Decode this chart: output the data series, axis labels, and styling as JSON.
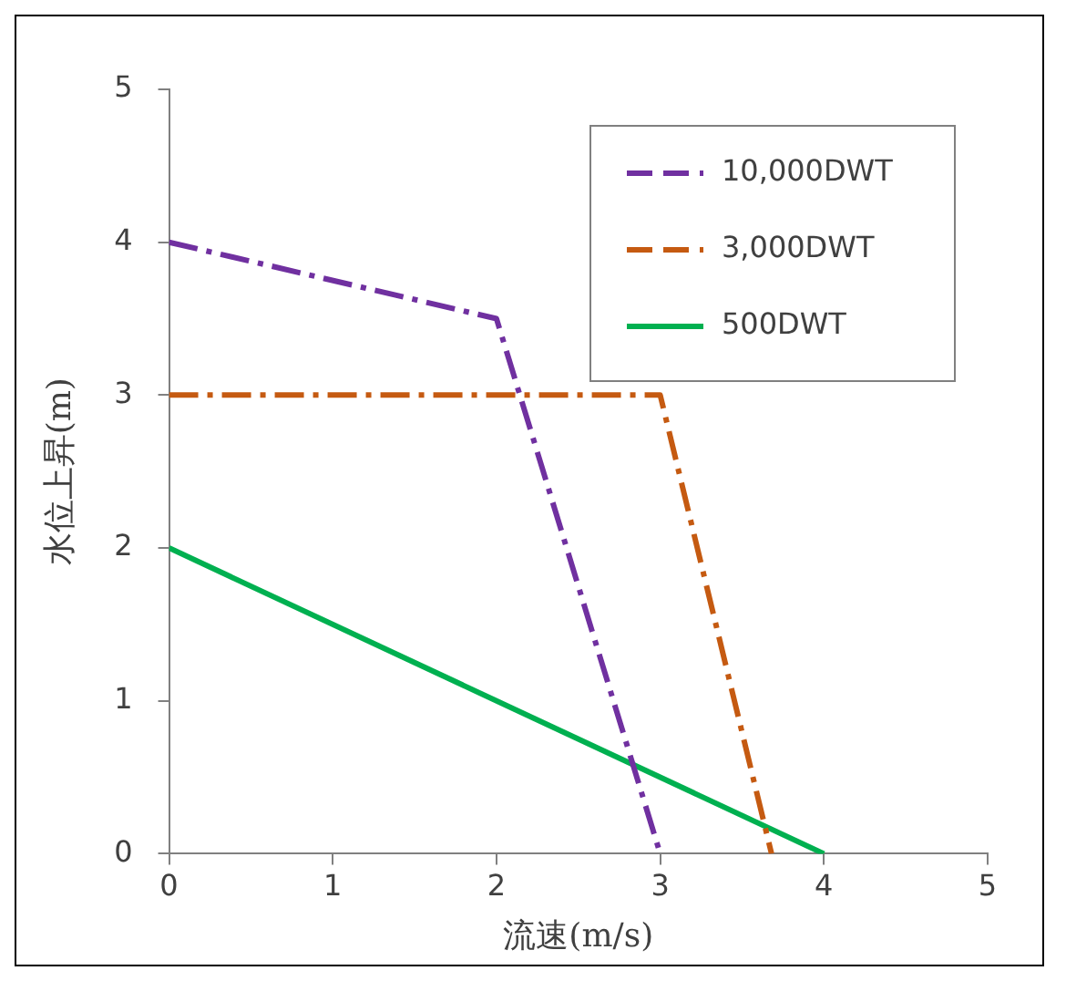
{
  "chart_data": {
    "type": "line",
    "xlabel": "流速(m/s)",
    "ylabel": "水位上昇(m)",
    "xlim": [
      0,
      5
    ],
    "ylim": [
      0,
      5
    ],
    "xticks": [
      0,
      1,
      2,
      3,
      4,
      5
    ],
    "yticks": [
      0,
      1,
      2,
      3,
      4,
      5
    ],
    "grid": false,
    "legend": "top right",
    "marker": "none",
    "series": [
      {
        "name": "10,000DWT",
        "color": "#7030a0",
        "x": [
          0,
          2,
          3
        ],
        "values": [
          4,
          3.5,
          0
        ],
        "line_style": "dashed"
      },
      {
        "name": "3,000DWT",
        "color": "#c55a11",
        "x": [
          0,
          3,
          3.68
        ],
        "values": [
          3,
          3,
          0
        ],
        "line_style": "dashed"
      },
      {
        "name": "500DWT",
        "color": "#00b050",
        "x": [
          0,
          4
        ],
        "values": [
          2,
          0
        ],
        "line_style": "solid"
      }
    ]
  }
}
